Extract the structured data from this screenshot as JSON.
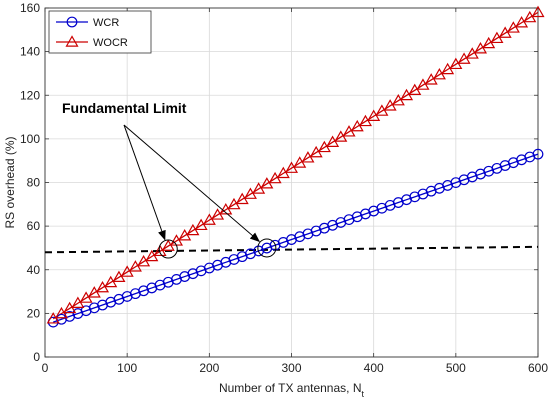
{
  "chart_data": {
    "type": "line",
    "xlabel": "Number of TX antennas, N",
    "xlabel_sub": "t",
    "ylabel": "RS overhead (%)",
    "xlim": [
      0,
      600
    ],
    "ylim": [
      0,
      160
    ],
    "xticks": [
      0,
      100,
      200,
      300,
      400,
      500,
      600
    ],
    "yticks": [
      0,
      20,
      40,
      60,
      80,
      100,
      120,
      140,
      160
    ],
    "grid": true,
    "legend_position": "top-left",
    "series": [
      {
        "name": "WCR",
        "color": "#0000cc",
        "marker": "circle",
        "x_start": 10,
        "x_end": 600,
        "x_step": 10,
        "y_start": 16,
        "y_end": 93
      },
      {
        "name": "WOCR",
        "color": "#cc0000",
        "marker": "triangle",
        "x_start": 10,
        "x_end": 600,
        "x_step": 10,
        "y_start": 17.5,
        "y_end": 158
      }
    ],
    "reference_line": {
      "style": "dashed",
      "color": "#000000",
      "x": [
        0,
        600
      ],
      "y": [
        48,
        50.5
      ]
    },
    "annotation": {
      "text": "Fundamental Limit",
      "points": [
        [
          150,
          49.5
        ],
        [
          270,
          50
        ]
      ]
    }
  }
}
